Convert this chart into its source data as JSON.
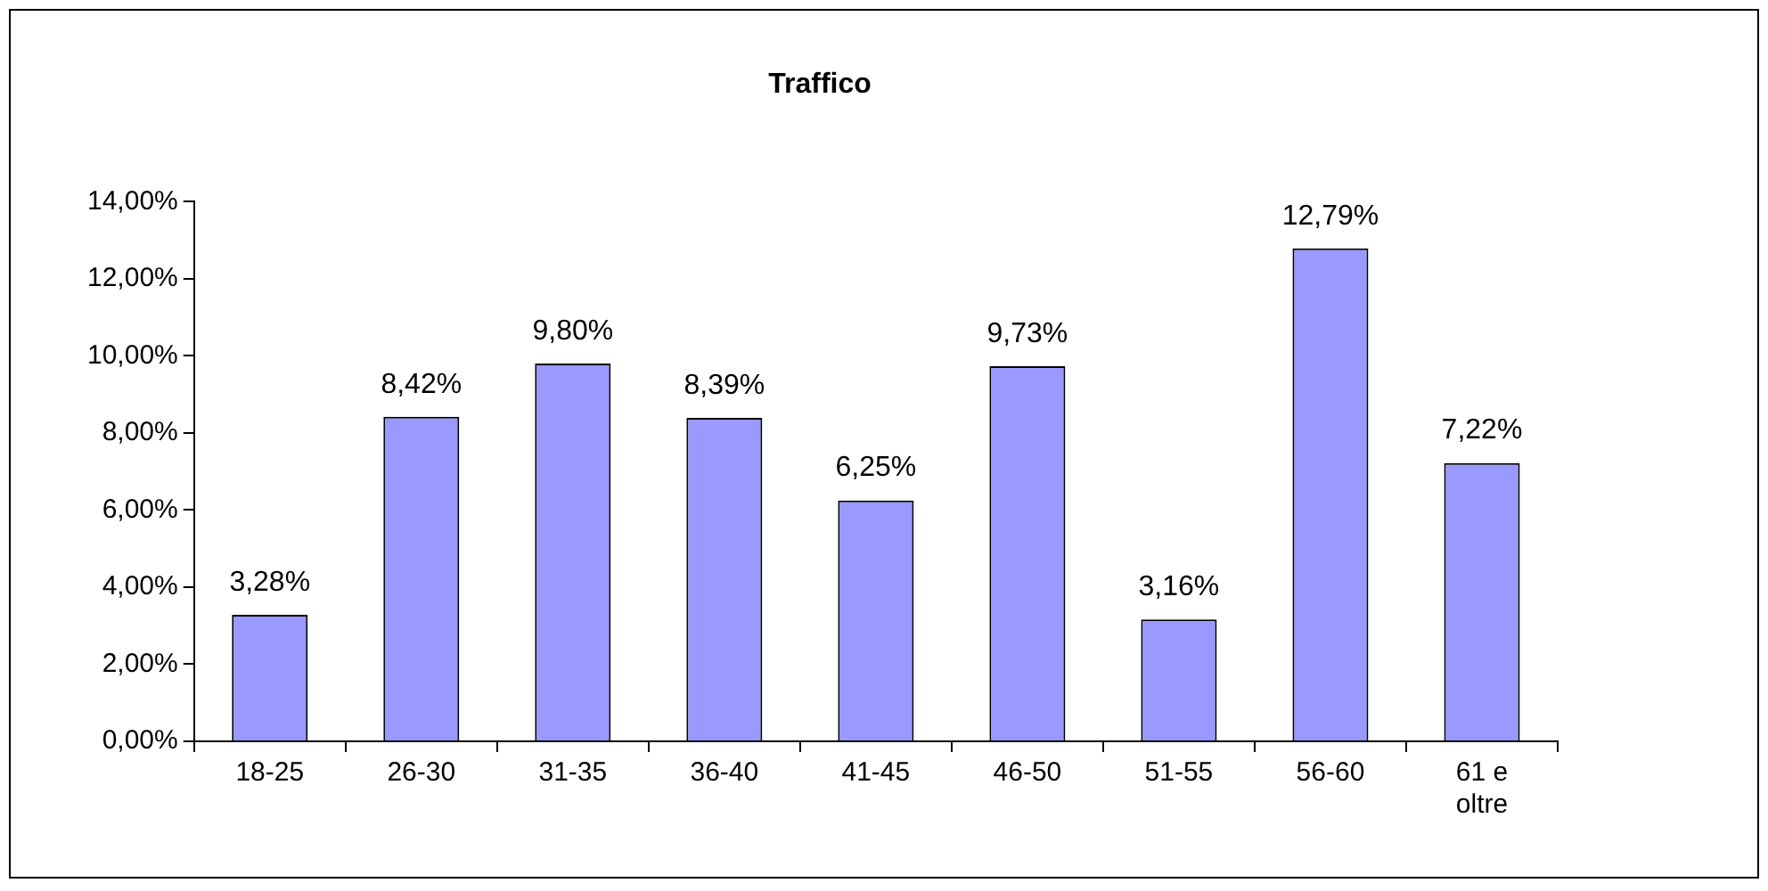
{
  "chart_data": {
    "type": "bar",
    "title": "Traffico",
    "categories": [
      "18-25",
      "26-30",
      "31-35",
      "36-40",
      "41-45",
      "46-50",
      "51-55",
      "56-60",
      "61 e oltre"
    ],
    "values": [
      3.28,
      8.42,
      9.8,
      8.39,
      6.25,
      9.73,
      3.16,
      12.79,
      7.22
    ],
    "value_labels": [
      "3,28%",
      "8,42%",
      "9,80%",
      "8,39%",
      "6,25%",
      "9,73%",
      "3,16%",
      "12,79%",
      "7,22%"
    ],
    "color": "#9999ff",
    "ylim": [
      0,
      14
    ],
    "yticks": [
      {
        "value": 0,
        "label": "0,00%"
      },
      {
        "value": 2,
        "label": "2,00%"
      },
      {
        "value": 4,
        "label": "4,00%"
      },
      {
        "value": 6,
        "label": "6,00%"
      },
      {
        "value": 8,
        "label": "8,00%"
      },
      {
        "value": 10,
        "label": "10,00%"
      },
      {
        "value": 12,
        "label": "12,00%"
      },
      {
        "value": 14,
        "label": "14,00%"
      }
    ]
  }
}
